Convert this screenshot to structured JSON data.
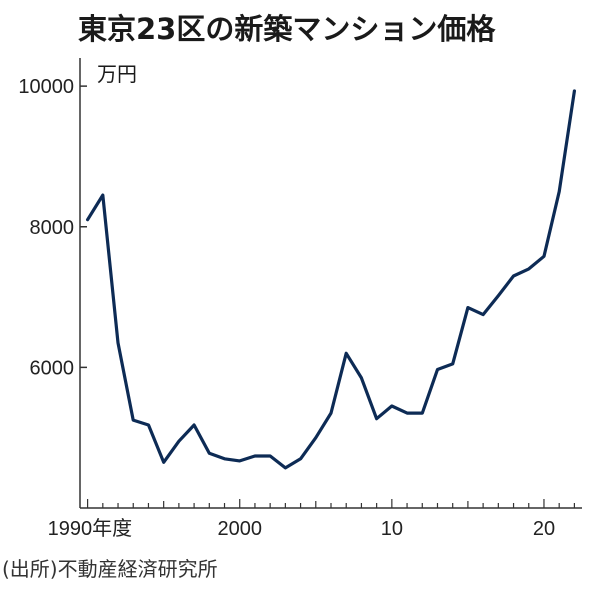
{
  "title": "東京23区の新築マンション価格",
  "unit": "万円",
  "source": "(出所)不動産経済研究所",
  "colors": {
    "line": "#0d2b55",
    "axis": "#333333"
  },
  "chart_data": {
    "type": "line",
    "title": "東京23区の新築マンション価格",
    "ylabel": "万円",
    "xlabel": "",
    "ylim": [
      4000,
      10400
    ],
    "xlim": [
      1989.5,
      2022.5
    ],
    "grid": false,
    "yticks": [
      {
        "value": 6000,
        "label": "6000"
      },
      {
        "value": 8000,
        "label": "8000"
      },
      {
        "value": 10000,
        "label": "10000"
      }
    ],
    "xticks": [
      {
        "value": 1990,
        "label": "1990年度"
      },
      {
        "value": 2000,
        "label": "2000"
      },
      {
        "value": 2010,
        "label": "10"
      },
      {
        "value": 2020,
        "label": "20"
      }
    ],
    "series": [
      {
        "color": "#0d2b55",
        "x": [
          1990,
          1991,
          1992,
          1993,
          1994,
          1995,
          1996,
          1997,
          1998,
          1999,
          2000,
          2001,
          2002,
          2003,
          2004,
          2005,
          2006,
          2007,
          2008,
          2009,
          2010,
          2011,
          2012,
          2013,
          2014,
          2015,
          2016,
          2017,
          2018,
          2019,
          2020,
          2021,
          2022
        ],
        "y": [
          8100,
          8450,
          6350,
          5250,
          5180,
          4650,
          4950,
          5180,
          4780,
          4700,
          4670,
          4740,
          4740,
          4570,
          4700,
          5000,
          5350,
          6200,
          5850,
          5270,
          5450,
          5350,
          5350,
          5970,
          6050,
          6850,
          6750,
          7020,
          7300,
          7400,
          7580,
          8500,
          9930
        ]
      }
    ]
  }
}
